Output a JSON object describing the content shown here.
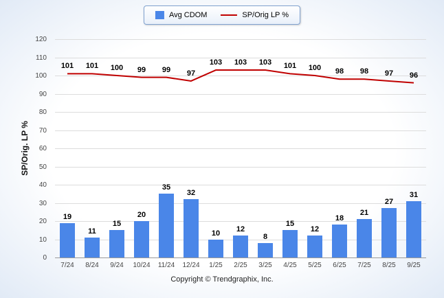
{
  "legend": {
    "items": [
      {
        "label": "Avg CDOM",
        "type": "bar",
        "color": "#4a86e8"
      },
      {
        "label": "SP/Orig LP %",
        "type": "line",
        "color": "#c00000"
      }
    ]
  },
  "footer": {
    "copyright": "Copyright © Trendgraphix, Inc."
  },
  "chart_data": {
    "type": "bar",
    "subtype": "bar+line combo",
    "categories": [
      "7/24",
      "8/24",
      "9/24",
      "10/24",
      "11/24",
      "12/24",
      "1/25",
      "2/25",
      "3/25",
      "4/25",
      "5/25",
      "6/25",
      "7/25",
      "8/25",
      "9/25"
    ],
    "series": [
      {
        "name": "Avg CDOM",
        "type": "bar",
        "color": "#4a86e8",
        "values": [
          19,
          11,
          15,
          20,
          35,
          32,
          10,
          12,
          8,
          15,
          12,
          18,
          21,
          27,
          31
        ]
      },
      {
        "name": "SP/Orig LP %",
        "type": "line",
        "color": "#c00000",
        "values": [
          101,
          101,
          100,
          99,
          99,
          97,
          103,
          103,
          103,
          101,
          100,
          98,
          98,
          97,
          96
        ]
      }
    ],
    "title": "",
    "xlabel": "",
    "ylabel": "SP/Orig. LP %",
    "ylim": [
      0,
      120
    ],
    "ytick_step": 10,
    "grid": true,
    "legend_position": "top"
  }
}
